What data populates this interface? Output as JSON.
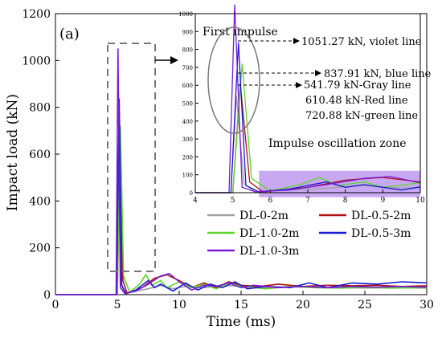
{
  "chart_data": [
    {
      "type": "line",
      "panel_label": "(a)",
      "xlabel": "Time (ms)",
      "ylabel": "Impact load (kN)",
      "xlim": [
        0,
        30
      ],
      "ylim": [
        0,
        1200
      ],
      "xticks": [
        0,
        5,
        10,
        15,
        20,
        25,
        30
      ],
      "yticks": [
        0,
        200,
        400,
        600,
        800,
        1000,
        1200
      ],
      "grid": false,
      "legend_position": "lower-right",
      "series": [
        {
          "name": "DL-0-2m",
          "color": "#a0a0a0",
          "peak": 541.79,
          "peak_t": 5.1,
          "points": [
            [
              0,
              0
            ],
            [
              4.95,
              0
            ],
            [
              5.1,
              541.79
            ],
            [
              5.3,
              50
            ],
            [
              5.6,
              5
            ],
            [
              6.5,
              15
            ],
            [
              7.5,
              25
            ],
            [
              8.5,
              40
            ],
            [
              9.5,
              25
            ],
            [
              10.5,
              35
            ],
            [
              12,
              30
            ],
            [
              13.5,
              40
            ],
            [
              15,
              35
            ],
            [
              17,
              30
            ],
            [
              19,
              35
            ],
            [
              21,
              30
            ],
            [
              23,
              30
            ],
            [
              25,
              28
            ],
            [
              27,
              30
            ],
            [
              30,
              28
            ]
          ]
        },
        {
          "name": "DL-0.5-2m",
          "color": "#b01010",
          "peak": 610.48,
          "peak_t": 5.2,
          "points": [
            [
              0,
              0
            ],
            [
              5.0,
              0
            ],
            [
              5.2,
              610.48
            ],
            [
              5.45,
              60
            ],
            [
              5.8,
              5
            ],
            [
              7,
              30
            ],
            [
              8,
              70
            ],
            [
              9,
              85
            ],
            [
              10,
              60
            ],
            [
              11,
              30
            ],
            [
              12,
              50
            ],
            [
              13,
              30
            ],
            [
              14,
              55
            ],
            [
              15,
              40
            ],
            [
              16.5,
              35
            ],
            [
              18,
              45
            ],
            [
              20,
              35
            ],
            [
              22,
              40
            ],
            [
              24,
              38
            ],
            [
              26,
              40
            ],
            [
              28,
              35
            ],
            [
              30,
              38
            ]
          ]
        },
        {
          "name": "DL-1.0-2m",
          "color": "#5cd62a",
          "peak": 720.88,
          "peak_t": 5.25,
          "points": [
            [
              0,
              0
            ],
            [
              5.0,
              0
            ],
            [
              5.25,
              720.88
            ],
            [
              5.5,
              80
            ],
            [
              6,
              10
            ],
            [
              6.8,
              45
            ],
            [
              7.3,
              85
            ],
            [
              7.8,
              40
            ],
            [
              8.5,
              60
            ],
            [
              9,
              30
            ],
            [
              10,
              55
            ],
            [
              11,
              30
            ],
            [
              12,
              45
            ],
            [
              13,
              25
            ],
            [
              14,
              50
            ],
            [
              15,
              35
            ],
            [
              17,
              25
            ],
            [
              19,
              35
            ],
            [
              21,
              30
            ],
            [
              23,
              28
            ],
            [
              25,
              32
            ],
            [
              27,
              28
            ],
            [
              30,
              30
            ]
          ]
        },
        {
          "name": "DL-0.5-3m",
          "color": "#1a1ad6",
          "peak": 837.91,
          "peak_t": 5.15,
          "points": [
            [
              0,
              0
            ],
            [
              4.95,
              0
            ],
            [
              5.15,
              837.91
            ],
            [
              5.35,
              40
            ],
            [
              5.7,
              5
            ],
            [
              6.5,
              20
            ],
            [
              7.5,
              60
            ],
            [
              8,
              30
            ],
            [
              8.5,
              45
            ],
            [
              9.5,
              15
            ],
            [
              10.5,
              50
            ],
            [
              11.5,
              20
            ],
            [
              12.5,
              45
            ],
            [
              13.5,
              30
            ],
            [
              14.5,
              55
            ],
            [
              15.5,
              25
            ],
            [
              17,
              35
            ],
            [
              19,
              30
            ],
            [
              20.5,
              50
            ],
            [
              22,
              30
            ],
            [
              24,
              50
            ],
            [
              26,
              45
            ],
            [
              28,
              55
            ],
            [
              30,
              50
            ]
          ]
        },
        {
          "name": "DL-1.0-3m",
          "color": "#7a1ad6",
          "peak": 1051.27,
          "peak_t": 5.05,
          "points": [
            [
              0,
              0
            ],
            [
              4.9,
              0
            ],
            [
              5.05,
              1051.27
            ],
            [
              5.25,
              30
            ],
            [
              5.6,
              5
            ],
            [
              6.5,
              15
            ],
            [
              7.5,
              45
            ],
            [
              8.5,
              80
            ],
            [
              9.2,
              90
            ],
            [
              10,
              55
            ],
            [
              11,
              20
            ],
            [
              12,
              40
            ],
            [
              13,
              35
            ],
            [
              14,
              50
            ],
            [
              15,
              30
            ],
            [
              16,
              40
            ],
            [
              18,
              30
            ],
            [
              20,
              35
            ],
            [
              22,
              30
            ],
            [
              24,
              35
            ],
            [
              26,
              32
            ],
            [
              28,
              35
            ],
            [
              30,
              32
            ]
          ]
        }
      ],
      "annotations": []
    },
    {
      "type": "line",
      "title": "First impulse",
      "xlim": [
        4,
        10
      ],
      "ylim": [
        0,
        1000
      ],
      "xticks": [
        4,
        5,
        6,
        7,
        8,
        9,
        10
      ],
      "yticks": [
        0,
        100,
        200,
        300,
        400,
        500,
        600,
        700,
        800,
        900,
        1000
      ],
      "zone_label": "Impulse oscillation zone",
      "zone_range": [
        5.7,
        10
      ],
      "zone_color": "#c9a8f2",
      "annotations": [
        "1051.27 kN, violet line",
        "837.91 kN, blue line",
        "541.79 kN-Gray line",
        "610.48 kN-Red line",
        "720.88 kN-green line"
      ]
    }
  ]
}
